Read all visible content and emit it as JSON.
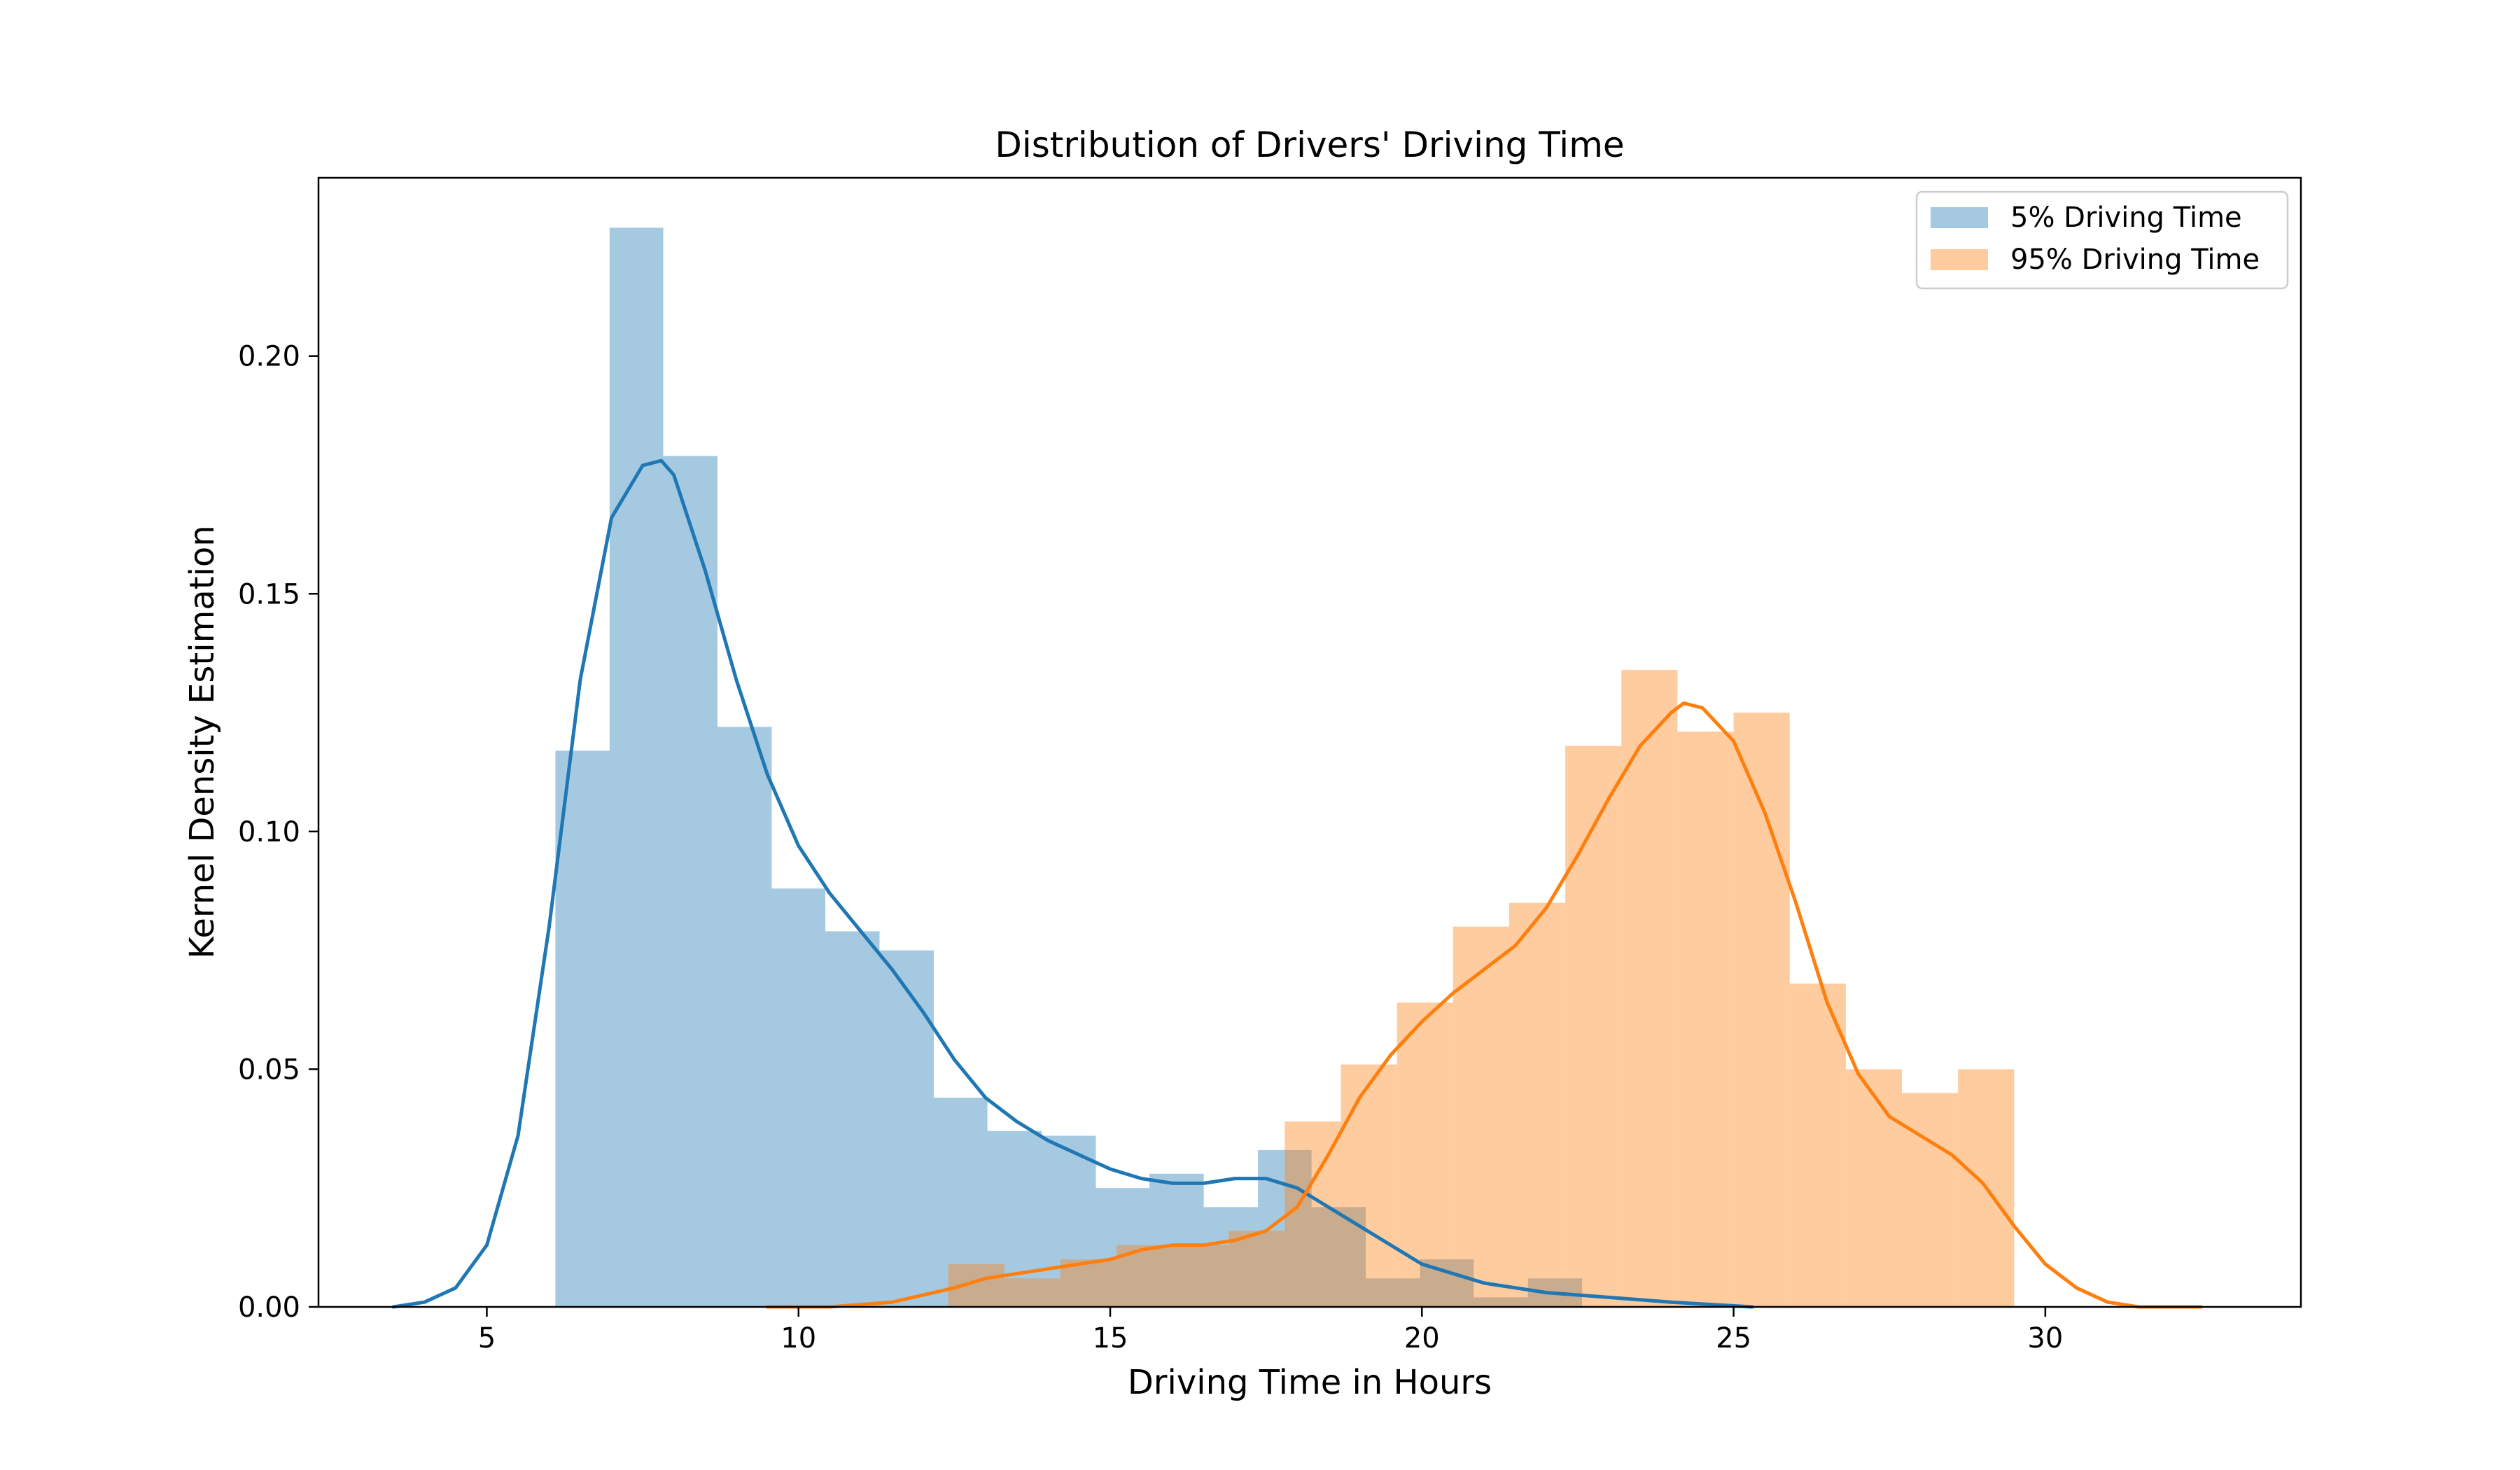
{
  "chart_data": {
    "type": "histogram+kde",
    "title": "Distribution of Drivers' Driving Time",
    "xlabel": "Driving Time in Hours",
    "ylabel": "Kernel Density Estimation",
    "xlim": [
      2.3,
      34.1
    ],
    "ylim": [
      0,
      0.2375
    ],
    "x_ticks": [
      5,
      10,
      15,
      20,
      25,
      30
    ],
    "x_tick_labels": [
      "5",
      "10",
      "15",
      "20",
      "25",
      "30"
    ],
    "y_ticks": [
      0,
      0.05,
      0.1,
      0.15,
      0.2
    ],
    "y_tick_labels": [
      "0.00",
      "0.05",
      "0.10",
      "0.15",
      "0.20"
    ],
    "grid": false,
    "legend_position": "top-right",
    "series": [
      {
        "name": "5% Driving Time",
        "color": "#1f77b4",
        "hist_alpha": 0.4,
        "bin_edges": [
          6.1,
          6.97,
          7.83,
          8.7,
          9.57,
          10.43,
          11.3,
          12.17,
          13.03,
          13.9,
          14.77,
          15.63,
          16.5,
          17.37,
          18.23,
          19.1,
          19.97,
          20.83,
          21.7,
          22.57,
          23.43
        ],
        "bin_values": [
          0.117,
          0.227,
          0.179,
          0.122,
          0.088,
          0.079,
          0.075,
          0.044,
          0.037,
          0.036,
          0.025,
          0.028,
          0.021,
          0.033,
          0.021,
          0.006,
          0.01,
          0.002,
          0.006,
          0
        ],
        "kde_x": [
          3.5,
          4.0,
          4.5,
          5.0,
          5.5,
          6.0,
          6.5,
          7.0,
          7.5,
          7.8,
          8.0,
          8.5,
          9.0,
          9.5,
          10.0,
          10.5,
          11.0,
          11.5,
          12.0,
          12.5,
          13.0,
          13.5,
          14.0,
          14.5,
          15.0,
          15.5,
          16.0,
          16.5,
          17.0,
          17.5,
          18.0,
          18.5,
          19.0,
          19.5,
          20.0,
          21.0,
          22.0,
          23.0,
          24.0,
          25.3
        ],
        "kde_y": [
          0.0,
          0.001,
          0.004,
          0.013,
          0.036,
          0.08,
          0.132,
          0.166,
          0.177,
          0.178,
          0.175,
          0.155,
          0.132,
          0.112,
          0.097,
          0.087,
          0.079,
          0.071,
          0.062,
          0.052,
          0.044,
          0.039,
          0.035,
          0.032,
          0.029,
          0.027,
          0.026,
          0.026,
          0.027,
          0.027,
          0.025,
          0.021,
          0.017,
          0.013,
          0.009,
          0.005,
          0.003,
          0.002,
          0.001,
          0.0
        ]
      },
      {
        "name": "95% Driving Time",
        "color": "#ff7f0e",
        "hist_alpha": 0.4,
        "bin_edges": [
          12.4,
          13.3,
          14.2,
          15.1,
          16.0,
          16.9,
          17.8,
          18.7,
          19.6,
          20.5,
          21.4,
          22.3,
          23.2,
          24.1,
          25.0,
          25.9,
          26.8,
          27.7,
          28.6,
          29.5
        ],
        "bin_values": [
          0.009,
          0.006,
          0.01,
          0.013,
          0.013,
          0.016,
          0.039,
          0.051,
          0.064,
          0.08,
          0.085,
          0.118,
          0.134,
          0.121,
          0.125,
          0.068,
          0.05,
          0.045,
          0.05
        ],
        "kde_x": [
          9.5,
          10.5,
          11.5,
          12.5,
          13.0,
          13.5,
          14.0,
          14.5,
          15.0,
          15.5,
          16.0,
          16.5,
          17.0,
          17.5,
          18.0,
          18.5,
          19.0,
          19.5,
          20.0,
          20.5,
          21.0,
          21.5,
          22.0,
          22.5,
          23.0,
          23.5,
          24.0,
          24.2,
          24.5,
          25.0,
          25.5,
          26.0,
          26.5,
          27.0,
          27.5,
          28.0,
          28.5,
          29.0,
          29.5,
          30.0,
          30.5,
          31.0,
          31.5,
          32.5
        ],
        "kde_y": [
          0.0,
          0.0,
          0.001,
          0.004,
          0.006,
          0.007,
          0.008,
          0.009,
          0.01,
          0.012,
          0.013,
          0.013,
          0.014,
          0.016,
          0.021,
          0.032,
          0.044,
          0.053,
          0.06,
          0.066,
          0.071,
          0.076,
          0.084,
          0.095,
          0.107,
          0.118,
          0.125,
          0.127,
          0.126,
          0.119,
          0.104,
          0.085,
          0.064,
          0.049,
          0.04,
          0.036,
          0.032,
          0.026,
          0.017,
          0.009,
          0.004,
          0.001,
          0.0,
          0.0
        ]
      }
    ]
  }
}
